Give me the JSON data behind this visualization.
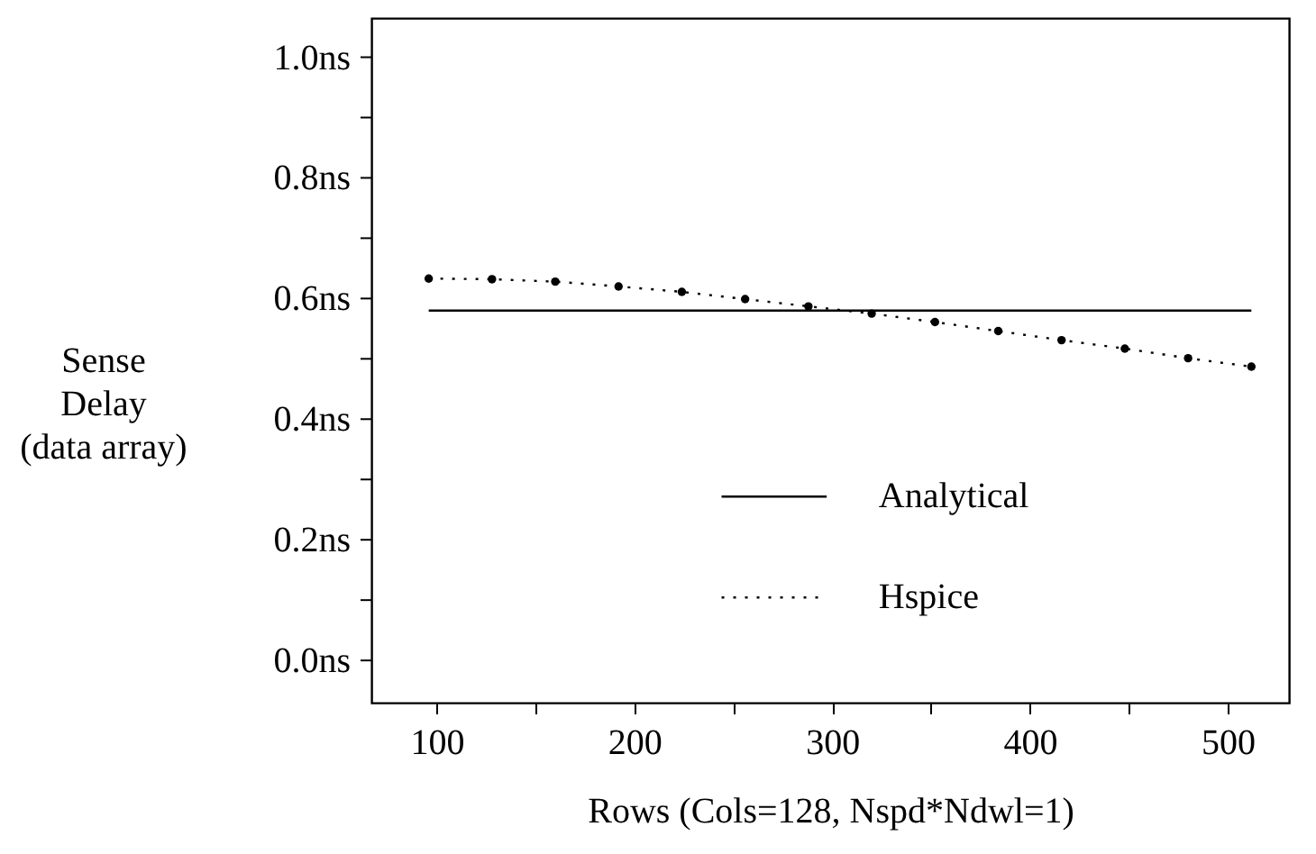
{
  "chart_data": {
    "type": "line",
    "xlabel": "Rows  (Cols=128, Nspd*Ndwl=1)",
    "ylabel": "Sense\nDelay\n(data array)",
    "x": [
      96,
      128,
      160,
      192,
      224,
      256,
      288,
      320,
      352,
      384,
      416,
      448,
      480,
      512
    ],
    "series": [
      {
        "name": "Analytical",
        "color": "#000000",
        "line_style": "solid",
        "marker": "none",
        "values": [
          0.58,
          0.58,
          0.58,
          0.58,
          0.58,
          0.58,
          0.58,
          0.58,
          0.58,
          0.58,
          0.58,
          0.58,
          0.58,
          0.58
        ]
      },
      {
        "name": "Hspice",
        "color": "#000000",
        "line_style": "dotted",
        "marker": "circle",
        "values": [
          0.633,
          0.632,
          0.628,
          0.62,
          0.611,
          0.599,
          0.587,
          0.575,
          0.561,
          0.546,
          0.531,
          0.517,
          0.501,
          0.487
        ]
      }
    ],
    "xlim": [
      67,
      531
    ],
    "xticks": [
      100,
      {
        "value": 150,
        "label": null
      },
      200,
      {
        "value": 250,
        "label": null
      },
      300,
      {
        "value": 350,
        "label": null
      },
      400,
      {
        "value": 450,
        "label": null
      },
      500
    ],
    "ylim": [
      -0.07,
      1.065
    ],
    "yticks": [
      {
        "value": 0,
        "label": "0.0ns"
      },
      {
        "value": 0.1,
        "label": null
      },
      {
        "value": 0.2,
        "label": "0.2ns"
      },
      {
        "value": 0.3,
        "label": null
      },
      {
        "value": 0.4,
        "label": "0.4ns"
      },
      {
        "value": 0.5,
        "label": null
      },
      {
        "value": 0.6,
        "label": "0.6ns"
      },
      {
        "value": 0.7,
        "label": null
      },
      {
        "value": 0.8,
        "label": "0.8ns"
      },
      {
        "value": 0.9,
        "label": null
      },
      {
        "value": 1.0,
        "label": "1.0ns"
      }
    ],
    "grid": false,
    "legend": "bottom"
  }
}
